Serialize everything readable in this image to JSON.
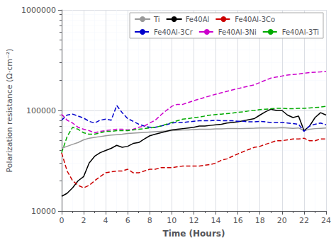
{
  "chart_data": {
    "type": "line",
    "xlabel": "Time (Hours)",
    "ylabel": "Polarization resistance (Ω·cm⁻²)",
    "xlim": [
      0,
      24
    ],
    "ylim": [
      10000,
      1000000
    ],
    "xticks": [
      0,
      2,
      4,
      6,
      8,
      10,
      12,
      14,
      16,
      18,
      20,
      22,
      24
    ],
    "yticks": [
      10000,
      100000,
      1000000
    ],
    "log": "y",
    "grid": true,
    "legend": "upper right",
    "x": [
      0,
      0.5,
      1,
      1.5,
      2,
      2.5,
      3,
      3.5,
      4,
      4.5,
      5,
      5.5,
      6,
      6.5,
      7,
      7.5,
      8,
      8.5,
      9,
      9.5,
      10,
      10.5,
      11,
      11.5,
      12,
      12.5,
      13,
      13.5,
      14,
      14.5,
      15,
      15.5,
      16,
      16.5,
      17,
      17.5,
      18,
      18.5,
      19,
      19.5,
      20,
      20.5,
      21,
      21.5,
      22,
      22.5,
      23,
      23.5,
      24
    ],
    "series": [
      {
        "name": "Ti",
        "color": "#999999",
        "line_style": "solid",
        "values": [
          42000,
          44000,
          46000,
          48000,
          51000,
          53000,
          54000,
          55000,
          56000,
          57000,
          57500,
          58000,
          59000,
          59500,
          60000,
          60500,
          61000,
          61500,
          62000,
          62500,
          63000,
          63500,
          64000,
          64000,
          64500,
          65000,
          65000,
          65000,
          65500,
          65500,
          66000,
          66000,
          66000,
          66200,
          66400,
          66600,
          67000,
          67000,
          67000,
          67000,
          67500,
          67000,
          66500,
          67000,
          63000,
          65000,
          66000,
          66500,
          67000
        ]
      },
      {
        "name": "Fe40Al",
        "color": "#000000",
        "line_style": "solid",
        "values": [
          14000,
          15000,
          17000,
          20000,
          22000,
          30000,
          35000,
          38000,
          40000,
          42000,
          45000,
          43000,
          44000,
          47000,
          48000,
          52000,
          56000,
          58000,
          60000,
          62000,
          64000,
          65000,
          66000,
          67000,
          68000,
          70000,
          70000,
          71000,
          72000,
          73000,
          75000,
          76000,
          77000,
          79000,
          81000,
          83000,
          90000,
          97000,
          103000,
          100000,
          100000,
          90000,
          85000,
          88000,
          63000,
          70000,
          85000,
          95000,
          90000
        ]
      },
      {
        "name": "Fe40Al-3Co",
        "color": "#cc0000",
        "line_style": "dashed",
        "values": [
          38000,
          25000,
          20000,
          18000,
          17000,
          18000,
          20000,
          22000,
          24000,
          24500,
          25000,
          25000,
          26000,
          24000,
          24000,
          25000,
          26000,
          26000,
          27000,
          27000,
          27000,
          27500,
          28000,
          28000,
          28000,
          28000,
          28500,
          29000,
          30000,
          32000,
          33000,
          35000,
          37000,
          39000,
          41000,
          43000,
          44000,
          46000,
          48000,
          50000,
          50000,
          51000,
          52000,
          52000,
          53000,
          50000,
          50000,
          52000,
          52000
        ]
      },
      {
        "name": "Fe40Al-3Cr",
        "color": "#0000cc",
        "line_style": "dashed",
        "values": [
          80000,
          90000,
          92000,
          88000,
          84000,
          78000,
          75000,
          80000,
          82000,
          80000,
          112000,
          95000,
          83000,
          78000,
          73000,
          70000,
          68000,
          68000,
          70000,
          72000,
          75000,
          76000,
          76000,
          77000,
          78000,
          79000,
          79000,
          79000,
          80000,
          79000,
          79000,
          79000,
          78000,
          78000,
          77000,
          77000,
          78000,
          77000,
          76000,
          76000,
          76000,
          75000,
          74000,
          73000,
          62000,
          70000,
          73000,
          75000,
          72000
        ]
      },
      {
        "name": "Fe40Al-3Ni",
        "color": "#cc00cc",
        "line_style": "dashed",
        "values": [
          92000,
          80000,
          75000,
          68000,
          65000,
          63000,
          60000,
          62000,
          63000,
          64000,
          65000,
          65000,
          64000,
          65000,
          68000,
          70000,
          75000,
          80000,
          90000,
          100000,
          110000,
          115000,
          115000,
          120000,
          125000,
          130000,
          135000,
          140000,
          145000,
          150000,
          155000,
          160000,
          165000,
          170000,
          175000,
          180000,
          190000,
          200000,
          210000,
          215000,
          220000,
          225000,
          228000,
          230000,
          235000,
          238000,
          240000,
          242000,
          245000
        ]
      },
      {
        "name": "Fe40Al-3Ti",
        "color": "#00aa00",
        "line_style": "dashed",
        "values": [
          38000,
          55000,
          68000,
          65000,
          60000,
          58000,
          58000,
          60000,
          62000,
          62000,
          63000,
          63000,
          63000,
          64000,
          65000,
          66000,
          67000,
          68000,
          70000,
          73000,
          76000,
          79000,
          82000,
          83000,
          85000,
          86000,
          88000,
          90000,
          91000,
          92000,
          93000,
          94000,
          96000,
          97000,
          99000,
          100000,
          102000,
          103000,
          104000,
          105000,
          105000,
          104000,
          104000,
          105000,
          105000,
          106000,
          107000,
          108000,
          110000
        ]
      }
    ]
  }
}
